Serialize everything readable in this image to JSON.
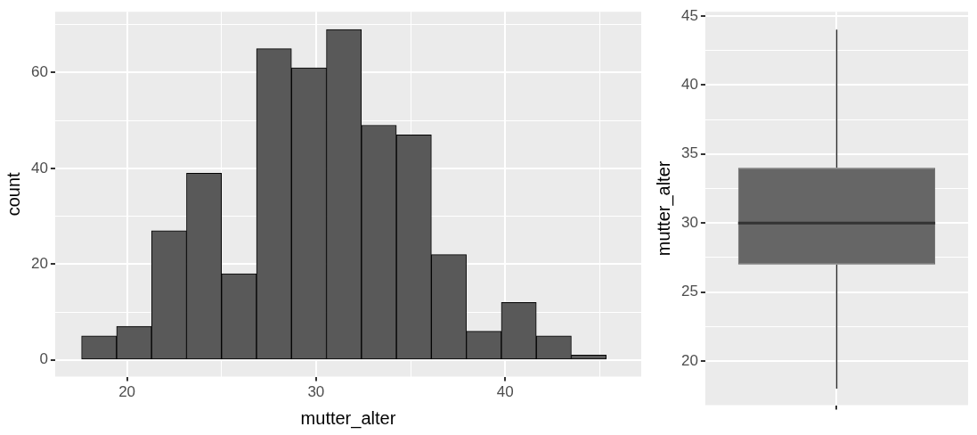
{
  "chart_data": [
    {
      "type": "histogram",
      "xlabel": "mutter_alter",
      "ylabel": "count",
      "color": "#595959",
      "bins": [
        17.6,
        19.45,
        21.3,
        23.15,
        25,
        26.85,
        28.7,
        30.55,
        32.4,
        34.25,
        36.1,
        37.95,
        39.8,
        41.65,
        43.5,
        45.35
      ],
      "values": [
        5,
        7,
        27,
        39,
        18,
        65,
        61,
        69,
        49,
        47,
        22,
        6,
        12,
        5,
        1
      ],
      "xlim": [
        16.2,
        47.2
      ],
      "xticks": [
        20,
        {
          "value": 25,
          "label": null
        },
        30,
        {
          "value": 35,
          "label": null
        },
        40,
        {
          "value": 45,
          "label": null
        }
      ],
      "ylim": [
        -3.5,
        72.7
      ],
      "yticks": [
        0,
        {
          "value": 10,
          "label": null
        },
        20,
        {
          "value": 30,
          "label": null
        },
        40,
        {
          "value": 50,
          "label": null
        },
        60,
        {
          "value": 70,
          "label": null
        }
      ],
      "grid": true
    },
    {
      "type": "box",
      "ylabel": "mutter_alter",
      "color": "#666666",
      "categories": [
        null
      ],
      "boxes": [
        {
          "low": 18,
          "q1": 27,
          "median": 30,
          "q3": 34,
          "high": 44
        }
      ],
      "ylim": [
        16.8,
        45.3
      ],
      "yticks": [
        20,
        {
          "value": 22.5,
          "label": null
        },
        25,
        {
          "value": 27.5,
          "label": null
        },
        30,
        {
          "value": 32.5,
          "label": null
        },
        35,
        {
          "value": 37.5,
          "label": null
        },
        40,
        {
          "value": 42.5,
          "label": null
        },
        45
      ],
      "grid": true
    }
  ]
}
